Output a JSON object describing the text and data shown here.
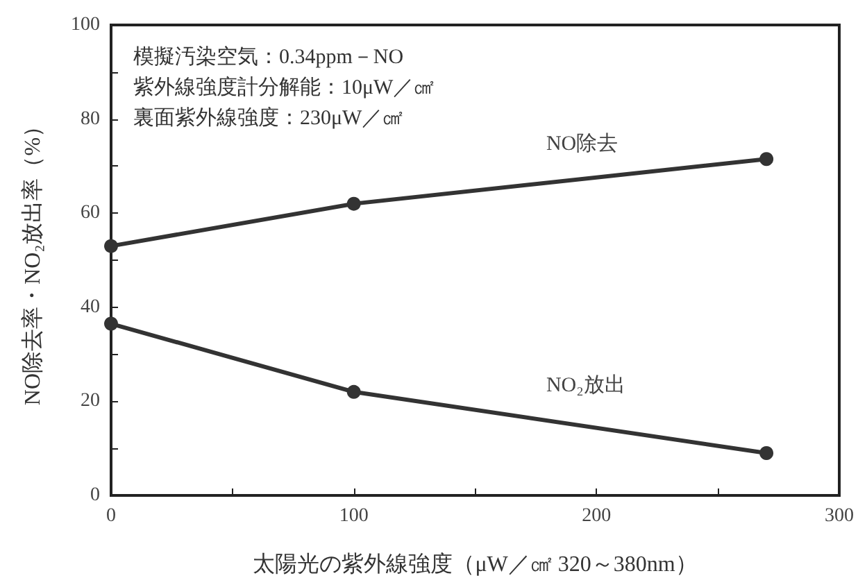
{
  "chart_data": {
    "type": "line",
    "xlabel": "太陽光の紫外線強度（μW／㎠ 320～380nm）",
    "ylabel": "NO除去率・NO₂放出率（%）",
    "annotations": [
      "模擬汚染空気：0.34ppm－NO",
      "紫外線強度計分解能：10μW／㎠",
      "裏面紫外線強度：230μW／㎠"
    ],
    "x": [
      0,
      100,
      270
    ],
    "series": [
      {
        "name": "NO除去",
        "color": "#333333",
        "values": [
          53,
          62,
          71.5
        ]
      },
      {
        "name": "NO₂放出",
        "color": "#333333",
        "values": [
          36.5,
          22,
          9
        ]
      }
    ],
    "xlim": [
      0,
      300
    ],
    "xticks": [
      0,
      {
        "value": 50,
        "label": null
      },
      100,
      {
        "value": 150,
        "label": null
      },
      200,
      {
        "value": 250,
        "label": null
      },
      300
    ],
    "ylim": [
      0,
      100
    ],
    "yticks": [
      0,
      {
        "value": 10,
        "label": null
      },
      20,
      {
        "value": 30,
        "label": null
      },
      40,
      {
        "value": 50,
        "label": null
      },
      60,
      {
        "value": 70,
        "label": null
      },
      80,
      {
        "value": 90,
        "label": null
      },
      100
    ],
    "grid": false,
    "legend": false,
    "marker": "circle",
    "line_style": "solid"
  }
}
